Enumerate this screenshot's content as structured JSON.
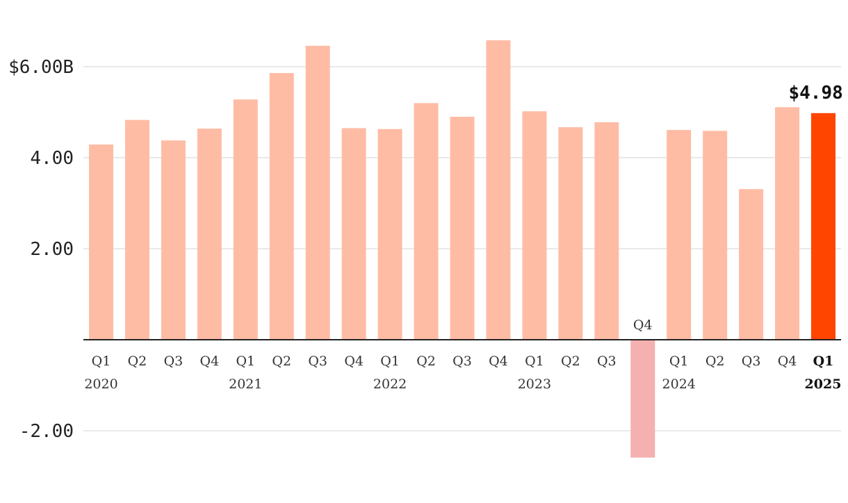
{
  "colors": {
    "bar": "#ffbca5",
    "negative_bar": "#f5b0b0",
    "highlight_bar": "#ff4500",
    "grid": "#e2e2e2",
    "axis": "#222222"
  },
  "chart_data": {
    "type": "bar",
    "title": "",
    "xlabel": "",
    "ylabel": "",
    "ylim": [
      -2.6,
      7.2
    ],
    "yticks": [
      {
        "value": 6.0,
        "label": "$6.00B"
      },
      {
        "value": 4.0,
        "label": "4.00"
      },
      {
        "value": 2.0,
        "label": "2.00"
      },
      {
        "value": -2.0,
        "label": "-2.00"
      }
    ],
    "grid": true,
    "highlight_label": "$4.98",
    "categories": [
      {
        "q": "Q1",
        "year": "2020",
        "value": 4.29
      },
      {
        "q": "Q2",
        "year": "",
        "value": 4.83
      },
      {
        "q": "Q3",
        "year": "",
        "value": 4.38
      },
      {
        "q": "Q4",
        "year": "",
        "value": 4.64
      },
      {
        "q": "Q1",
        "year": "2021",
        "value": 5.28
      },
      {
        "q": "Q2",
        "year": "",
        "value": 5.86
      },
      {
        "q": "Q3",
        "year": "",
        "value": 6.46
      },
      {
        "q": "Q4",
        "year": "",
        "value": 4.65
      },
      {
        "q": "Q1",
        "year": "2022",
        "value": 4.63
      },
      {
        "q": "Q2",
        "year": "",
        "value": 5.2
      },
      {
        "q": "Q3",
        "year": "",
        "value": 4.9
      },
      {
        "q": "Q4",
        "year": "",
        "value": 6.58
      },
      {
        "q": "Q1",
        "year": "2023",
        "value": 5.02
      },
      {
        "q": "Q2",
        "year": "",
        "value": 4.67
      },
      {
        "q": "Q3",
        "year": "",
        "value": 4.78
      },
      {
        "q": "Q4",
        "year": "",
        "value": -2.59
      },
      {
        "q": "Q1",
        "year": "2024",
        "value": 4.61
      },
      {
        "q": "Q2",
        "year": "",
        "value": 4.59
      },
      {
        "q": "Q3",
        "year": "",
        "value": 3.31
      },
      {
        "q": "Q4",
        "year": "",
        "value": 5.11
      },
      {
        "q": "Q1",
        "year": "2025",
        "value": 4.98,
        "highlight": true
      }
    ]
  }
}
